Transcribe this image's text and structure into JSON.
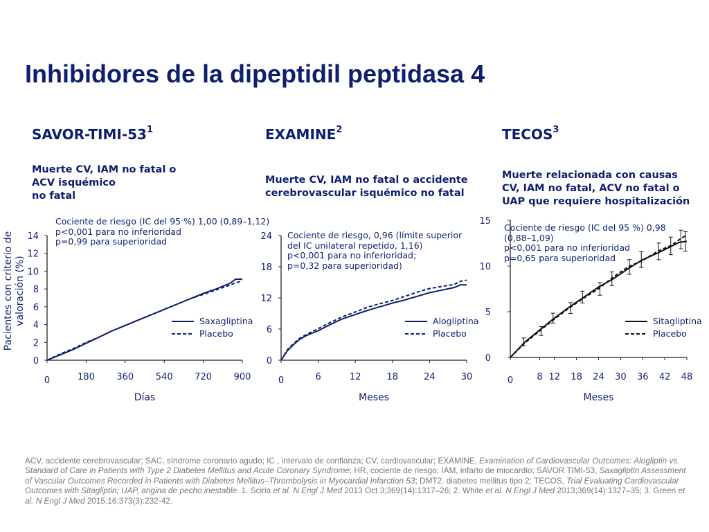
{
  "title": "Inhibidores de la dipeptidil peptidasa 4",
  "y_axis_label_line1": "Pacientes con criterio de",
  "y_axis_label_line2": "valoración (%)",
  "colors": {
    "navy": "#0f1f6e",
    "black": "#111111",
    "footnote": "#777777"
  },
  "panels": [
    {
      "trial": "SAVOR-TIMI-53",
      "ref": "1",
      "endpoint": [
        "Muerte CV, IAM no fatal o",
        "ACV isquémico",
        "no fatal"
      ],
      "hr_text": [
        "Cociente de riesgo (IC del 95 %) 1,00 (0,89–1,12)",
        "p<0,001 para no inferioridad",
        "p=0,99 para superioridad"
      ]
    },
    {
      "trial": "EXAMINE",
      "ref": "2",
      "endpoint": [
        "Muerte CV, IAM no fatal o accidente",
        "cerebrovascular isquémico no fatal"
      ],
      "hr_text": [
        "Cociente de riesgo, 0,96 (límite superior",
        "del IC unilateral repetido, 1,16)",
        "p<0,001 para no inferioridad;",
        "p=0,32 para superioridad)"
      ]
    },
    {
      "trial": "TECOS",
      "ref": "3",
      "endpoint": [
        "Muerte relacionada con causas",
        "CV, IAM no fatal, ACV no fatal o",
        "UAP que requiere hospitalización"
      ],
      "hr_text": [
        "Cociente de riesgo (IC del 95 %) 0,98",
        "(0,88–1,09)",
        "p<0,001 para no inferioridad",
        "p=0,65 para superioridad"
      ]
    }
  ],
  "chart_data": [
    {
      "type": "line",
      "title": "SAVOR-TIMI-53",
      "xlabel": "Días",
      "ylabel": "Pacientes con criterio de valoración (%)",
      "xlim": [
        0,
        900
      ],
      "ylim": [
        0,
        14
      ],
      "x_ticks": [
        0,
        180,
        360,
        540,
        720,
        900
      ],
      "y_ticks": [
        0,
        2,
        4,
        6,
        8,
        10,
        12,
        14
      ],
      "legend_position": "bottom-right",
      "series": [
        {
          "name": "Saxagliptina",
          "style": "solid",
          "x": [
            0,
            60,
            120,
            180,
            240,
            300,
            360,
            420,
            480,
            540,
            600,
            660,
            720,
            780,
            840,
            870,
            900
          ],
          "y": [
            0,
            0.6,
            1.2,
            1.9,
            2.6,
            3.3,
            3.9,
            4.5,
            5.1,
            5.7,
            6.3,
            6.9,
            7.5,
            8.0,
            8.6,
            9.1,
            9.1
          ]
        },
        {
          "name": "Placebo",
          "style": "dashed",
          "x": [
            0,
            60,
            120,
            180,
            240,
            300,
            360,
            420,
            480,
            540,
            600,
            660,
            720,
            780,
            840,
            870,
            900
          ],
          "y": [
            0,
            0.7,
            1.3,
            2.0,
            2.6,
            3.3,
            3.9,
            4.5,
            5.1,
            5.7,
            6.3,
            6.9,
            7.4,
            7.9,
            8.4,
            8.7,
            8.9
          ]
        }
      ]
    },
    {
      "type": "line",
      "title": "EXAMINE",
      "xlabel": "Meses",
      "xlim": [
        0,
        30
      ],
      "ylim": [
        0,
        24
      ],
      "x_ticks": [
        0,
        6,
        12,
        18,
        24,
        30
      ],
      "y_ticks": [
        0,
        6,
        12,
        18,
        24
      ],
      "legend_position": "bottom-right",
      "series": [
        {
          "name": "Alogliptina",
          "style": "solid",
          "x": [
            0,
            1,
            2,
            3,
            4,
            5,
            6,
            8,
            10,
            12,
            14,
            16,
            18,
            20,
            22,
            24,
            26,
            28,
            29,
            30
          ],
          "y": [
            0,
            1.8,
            3.0,
            4.0,
            4.7,
            5.2,
            5.7,
            6.9,
            8.0,
            8.8,
            9.6,
            10.3,
            11.0,
            11.6,
            12.3,
            13.0,
            13.5,
            14.0,
            14.5,
            14.5
          ]
        },
        {
          "name": "Placebo",
          "style": "dashed",
          "x": [
            0,
            1,
            2,
            3,
            4,
            5,
            6,
            8,
            10,
            12,
            14,
            16,
            18,
            20,
            22,
            24,
            26,
            28,
            29,
            30
          ],
          "y": [
            0,
            2.0,
            3.2,
            4.2,
            4.9,
            5.5,
            6.1,
            7.3,
            8.4,
            9.3,
            10.2,
            10.9,
            11.5,
            12.3,
            13.1,
            13.8,
            14.2,
            14.6,
            15.2,
            15.4
          ]
        }
      ]
    },
    {
      "type": "line",
      "title": "TECOS",
      "xlabel": "Meses",
      "xlim": [
        0,
        48
      ],
      "ylim": [
        0,
        15
      ],
      "x_ticks": [
        0,
        8,
        12,
        18,
        24,
        30,
        36,
        42,
        48
      ],
      "y_ticks": [
        0,
        5,
        10,
        15
      ],
      "legend_position": "bottom-right",
      "series": [
        {
          "name": "Sitagliptina",
          "style": "solid",
          "x": [
            0,
            4,
            8,
            12,
            16,
            20,
            24,
            28,
            32,
            36,
            40,
            44,
            46,
            48
          ],
          "y": [
            0,
            1.7,
            3.0,
            4.3,
            5.5,
            6.6,
            7.7,
            8.6,
            9.7,
            10.7,
            11.4,
            12.2,
            12.6,
            12.7
          ]
        },
        {
          "name": "Placebo",
          "style": "dashed",
          "x": [
            0,
            4,
            8,
            12,
            16,
            20,
            24,
            28,
            32,
            36,
            40,
            44,
            46,
            48
          ],
          "y": [
            0,
            1.6,
            2.9,
            4.2,
            5.4,
            6.5,
            7.5,
            8.8,
            9.9,
            10.6,
            11.6,
            12.3,
            12.9,
            13.4
          ]
        }
      ]
    }
  ],
  "footnote": {
    "p1": "ACV, accidente cerebrovascular; SAC, síndrome coronario agudo; IC , intervalo de confianza; CV, cardiovascular; EXAMINE, ",
    "i1": "Examination of Cardiovascular Outcomes: Alogliptin vs. Standard of Care in Patients with Type 2 Diabetes Mellitus and Acute Coronary Syndrome",
    "p2": "; HR, cociente de riesgo; IAM, infarto de miocardio; SAVOR TIMI-53, ",
    "i2": "Saxagliptin Assessment of Vascular Outcomes Recorded in Patients with Diabetes Mellitus–Thrombolysis  in  Myocardial  Infarction 53",
    "p3": "; DMT2. diabetes mellitus tipo 2; TECOS, ",
    "i3": "Trial Evaluating Cardiovascular Outcomes with Sitagliptin; UAP, angina de pecho inestable.",
    "p4": " 1. Sciria ",
    "i4": "et al. N Engl J Med",
    "p5": " 2013 Oct 3;369(14):1317–26; 2. White ",
    "i5": "et al. N Engl J Med",
    "p6": " 2013;369(14):1327–35; 3. Green ",
    "i6": "et al. N Engl J Med",
    "p7": " 2015;16;373(3):232-42."
  }
}
